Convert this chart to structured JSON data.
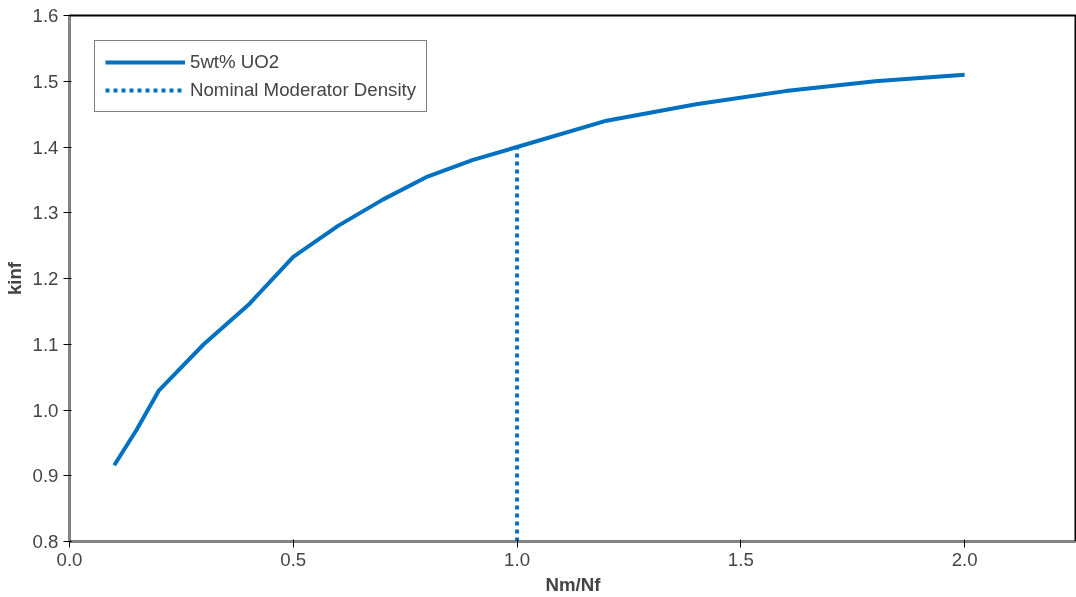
{
  "chart_data": {
    "type": "line",
    "xlabel": "Nm/Nf",
    "ylabel": "kinf",
    "xlim": [
      0,
      2.25
    ],
    "ylim": [
      0.8,
      1.6
    ],
    "xticks": [
      {
        "value": 0,
        "label": "0.0"
      },
      0.5,
      {
        "value": 1,
        "label": "1.0"
      },
      1.5,
      {
        "value": 2,
        "label": "2.0"
      }
    ],
    "yticks": [
      0.8,
      0.9,
      {
        "value": 1,
        "label": "1.0"
      },
      1.1,
      1.2,
      1.3,
      1.4,
      1.5,
      1.6
    ],
    "grid": false,
    "legend": "top left",
    "marker": "none",
    "series": [
      {
        "name": "5wt% UO2",
        "color": "#0070c0",
        "line_style": "solid",
        "x": [
          0.1,
          0.15,
          0.2,
          0.3,
          0.4,
          0.5,
          0.6,
          0.7,
          0.8,
          0.9,
          1.0,
          1.2,
          1.4,
          1.6,
          1.8,
          2.0
        ],
        "values": [
          0.916,
          0.97,
          1.03,
          1.1,
          1.16,
          1.233,
          1.28,
          1.32,
          1.355,
          1.38,
          1.4,
          1.44,
          1.465,
          1.485,
          1.5,
          1.51
        ]
      },
      {
        "name": "Nominal Moderator Density",
        "color": "#0070c0",
        "line_style": "dotted",
        "x": [
          1.0,
          1.0
        ],
        "values": [
          0.8,
          1.4
        ]
      }
    ]
  }
}
